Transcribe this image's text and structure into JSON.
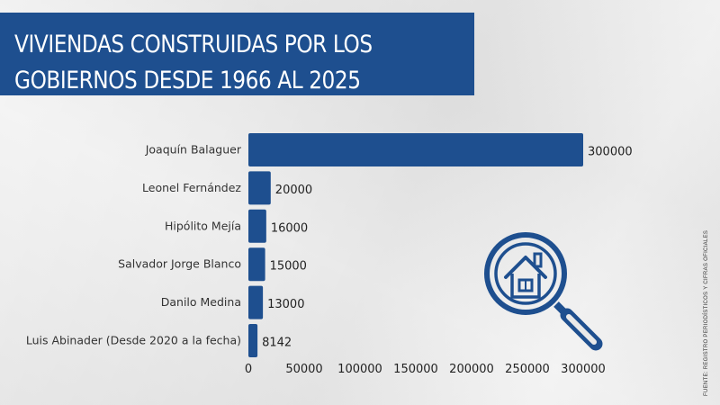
{
  "title": {
    "line1": "VIVIENDAS CONSTRUIDAS POR LOS",
    "line2": "GOBIERNOS DESDE 1966 AL 2025"
  },
  "source": "FUENTE: REGISTRO PERIODÍSTICOS Y CIFRAS OFICIALES",
  "colors": {
    "bar": "#1e4f8f",
    "title_bg": "#1e4f8f",
    "text": "#333333"
  },
  "icon": "house-magnifier-icon",
  "chart_data": {
    "type": "bar",
    "orientation": "horizontal",
    "categories": [
      "Joaquín Balaguer",
      "Leonel Fernández",
      "Hipólito Mejía",
      "Salvador Jorge Blanco",
      "Danilo Medina",
      "Luis Abinader (Desde 2020 a la fecha)"
    ],
    "values": [
      300000,
      20000,
      16000,
      15000,
      13000,
      8142
    ],
    "value_labels": [
      "300000",
      "20000",
      "16000",
      "15000",
      "13000",
      "8142"
    ],
    "xlim": [
      0,
      300000
    ],
    "xticks": [
      "0",
      "50000",
      "100000",
      "150000",
      "200000",
      "250000",
      "300000"
    ],
    "grid": false,
    "legend": "none"
  }
}
